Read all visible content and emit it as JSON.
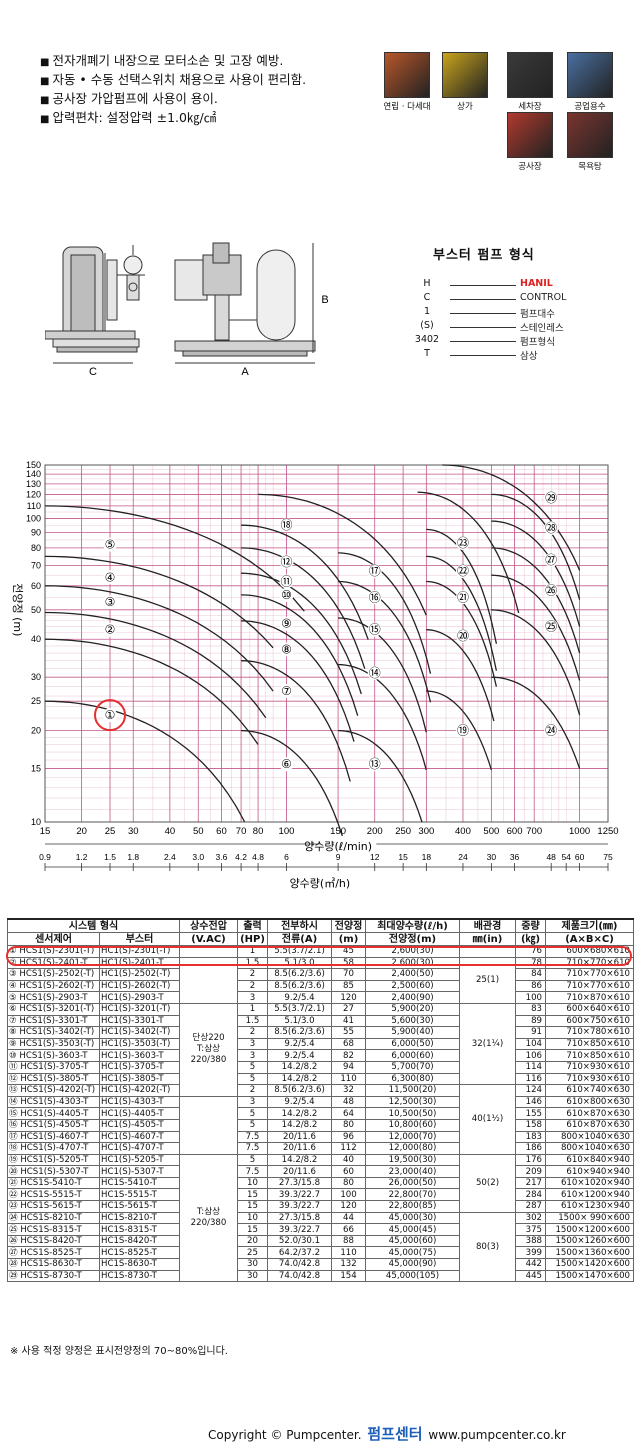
{
  "features": [
    "전자개폐기 내장으로 모터소손 및 고장 예방.",
    "자동 • 수동 선택스위치 채용으로 사용이 편리함.",
    "공사장 가압펌프에 사용이 용이.",
    "압력편차: 설정압력 ±1.0㎏/㎠"
  ],
  "applications": [
    {
      "label": "연립 · 다세대",
      "icon": "apartment-icon",
      "color": "#b8562a"
    },
    {
      "label": "상가",
      "icon": "shop-icon",
      "color": "#c9a41c"
    },
    {
      "label": "세차장",
      "icon": "carwash-icon",
      "color": "#3a3a3a"
    },
    {
      "label": "공업용수",
      "icon": "factory-icon",
      "color": "#4a6fa0"
    },
    {
      "label": "공사장",
      "icon": "construction-icon",
      "color": "#b03a2e"
    },
    {
      "label": "목욕탕",
      "icon": "bathhouse-icon",
      "color": "#7a3530"
    }
  ],
  "drawing": {
    "dim_a": "A",
    "dim_b": "B",
    "dim_c": "C"
  },
  "model_code": {
    "title": "부스터 펌프 형식",
    "rows": [
      {
        "code": "H",
        "meaning": "HANIL",
        "color": "#e02020"
      },
      {
        "code": "C",
        "meaning": "CONTROL",
        "color": "#222222"
      },
      {
        "code": "1",
        "meaning": "펌프대수",
        "color": "#222222"
      },
      {
        "code": "(S)",
        "meaning": "스테인레스",
        "color": "#222222"
      },
      {
        "code": "3402",
        "meaning": "펌프형식",
        "color": "#222222"
      },
      {
        "code": "T",
        "meaning": "삼상",
        "color": "#222222"
      }
    ]
  },
  "chart_data": {
    "type": "line",
    "title": "",
    "ylabel": "전양정 (m)",
    "xlabel": "양수량(ℓ/min)",
    "xlabel2": "양수량(㎥/h)",
    "y_ticks": [
      10,
      15,
      20,
      25,
      30,
      40,
      50,
      60,
      70,
      80,
      90,
      100,
      110,
      120,
      130,
      140,
      150
    ],
    "x_ticks": [
      15,
      20,
      25,
      30,
      40,
      50,
      60,
      70,
      80,
      100,
      150,
      200,
      250,
      300,
      400,
      500,
      600,
      700,
      1000,
      1250
    ],
    "x2_ticks": [
      "0.9",
      "1.2",
      "1.5",
      "1.8",
      "2.4",
      "3.0",
      "3.6",
      "4.2",
      "4.8",
      "6",
      "9",
      "12",
      "15",
      "18",
      "24",
      "30",
      "36",
      "48",
      "54",
      "60",
      "75"
    ],
    "highlight": "①",
    "curves": [
      {
        "id": "①",
        "label_at": [
          25,
          22.5
        ]
      },
      {
        "id": "②",
        "label_at": [
          25,
          43
        ]
      },
      {
        "id": "③",
        "label_at": [
          25,
          53
        ]
      },
      {
        "id": "④",
        "label_at": [
          25,
          64
        ]
      },
      {
        "id": "⑤",
        "label_at": [
          25,
          82
        ]
      },
      {
        "id": "⑥",
        "label_at": [
          100,
          15.5
        ]
      },
      {
        "id": "⑦",
        "label_at": [
          100,
          27
        ]
      },
      {
        "id": "⑧",
        "label_at": [
          100,
          37
        ]
      },
      {
        "id": "⑨",
        "label_at": [
          100,
          45
        ]
      },
      {
        "id": "⑩",
        "label_at": [
          100,
          56
        ]
      },
      {
        "id": "⑪",
        "label_at": [
          100,
          62
        ]
      },
      {
        "id": "⑫",
        "label_at": [
          100,
          72
        ]
      },
      {
        "id": "⑬",
        "label_at": [
          200,
          15.5
        ]
      },
      {
        "id": "⑭",
        "label_at": [
          200,
          31
        ]
      },
      {
        "id": "⑮",
        "label_at": [
          200,
          43
        ]
      },
      {
        "id": "⑯",
        "label_at": [
          200,
          55
        ]
      },
      {
        "id": "⑰",
        "label_at": [
          200,
          67
        ]
      },
      {
        "id": "⑱",
        "label_at": [
          100,
          95
        ]
      },
      {
        "id": "⑲",
        "label_at": [
          400,
          20
        ]
      },
      {
        "id": "⑳",
        "label_at": [
          400,
          41
        ]
      },
      {
        "id": "㉑",
        "label_at": [
          400,
          55
        ]
      },
      {
        "id": "㉒",
        "label_at": [
          400,
          67
        ]
      },
      {
        "id": "㉓",
        "label_at": [
          400,
          83
        ]
      },
      {
        "id": "㉔",
        "label_at": [
          800,
          20
        ]
      },
      {
        "id": "㉕",
        "label_at": [
          800,
          44
        ]
      },
      {
        "id": "㉖",
        "label_at": [
          800,
          58
        ]
      },
      {
        "id": "㉗",
        "label_at": [
          800,
          73
        ]
      },
      {
        "id": "㉘",
        "label_at": [
          800,
          93
        ]
      },
      {
        "id": "㉙",
        "label_at": [
          800,
          117
        ]
      }
    ]
  },
  "table": {
    "header1": [
      "시스템 형식",
      "",
      "상수전압",
      "출력",
      "전부하시",
      "전양정",
      "최대양수량(ℓ/h)",
      "배관경",
      "중량",
      "제품크기(㎜)"
    ],
    "header2": [
      "센서제어",
      "부스터",
      "(V.AC)",
      "(HP)",
      "전류(A)",
      "(m)",
      "전양정(m)",
      "㎜(in)",
      "(㎏)",
      "(A×B×C)"
    ],
    "rows": [
      [
        "① HCS1(S)-2301(-T)",
        "HC1(S)-2301(-T)",
        "1",
        "5.5(3.7/2.1)",
        "45",
        "2,600(30)",
        "76",
        "600×680×610"
      ],
      [
        "② HCS1(S)-2401-T",
        "HC1(S)-2401-T",
        "1.5",
        "5.1/3.0",
        "58",
        "2,600(30)",
        "78",
        "710×770×610"
      ],
      [
        "③ HCS1(S)-2502(-T)",
        "HC1(S)-2502(-T)",
        "2",
        "8.5(6.2/3.6)",
        "70",
        "2,400(50)",
        "84",
        "710×770×610"
      ],
      [
        "④ HCS1(S)-2602(-T)",
        "HC1(S)-2602(-T)",
        "2",
        "8.5(6.2/3.6)",
        "85",
        "2,500(60)",
        "86",
        "710×770×610"
      ],
      [
        "⑤ HCS1(S)-2903-T",
        "HC1(S)-2903-T",
        "3",
        "9.2/5.4",
        "120",
        "2,400(90)",
        "100",
        "710×870×610"
      ],
      [
        "⑥ HCS1(S)-3201(-T)",
        "HC1(S)-3201(-T)",
        "1",
        "5.5(3.7/2.1)",
        "27",
        "5,900(20)",
        "83",
        "600×640×610"
      ],
      [
        "⑦ HCS1(S)-3301-T",
        "HC1(S)-3301-T",
        "1.5",
        "5.1/3.0",
        "41",
        "5,600(30)",
        "89",
        "600×750×610"
      ],
      [
        "⑧ HCS1(S)-3402(-T)",
        "HC1(S)-3402(-T)",
        "2",
        "8.5(6.2/3.6)",
        "55",
        "5,900(40)",
        "91",
        "710×780×610"
      ],
      [
        "⑨ HCS1(S)-3503(-T)",
        "HC1(S)-3503(-T)",
        "3",
        "9.2/5.4",
        "68",
        "6,000(50)",
        "104",
        "710×850×610"
      ],
      [
        "⑩ HCS1(S)-3603-T",
        "HC1(S)-3603-T",
        "3",
        "9.2/5.4",
        "82",
        "6,000(60)",
        "106",
        "710×850×610"
      ],
      [
        "⑪ HCS1(S)-3705-T",
        "HC1(S)-3705-T",
        "5",
        "14.2/8.2",
        "94",
        "5,700(70)",
        "114",
        "710×930×610"
      ],
      [
        "⑫ HCS1(S)-3805-T",
        "HC1(S)-3805-T",
        "5",
        "14.2/8.2",
        "110",
        "6,300(80)",
        "116",
        "710×930×610"
      ],
      [
        "⑬ HCS1(S)-4202(-T)",
        "HC1(S)-4202(-T)",
        "2",
        "8.5(6.2/3.6)",
        "32",
        "11,500(20)",
        "124",
        "610×740×630"
      ],
      [
        "⑭ HCS1(S)-4303-T",
        "HC1(S)-4303-T",
        "3",
        "9.2/5.4",
        "48",
        "12,500(30)",
        "146",
        "610×800×630"
      ],
      [
        "⑮ HCS1(S)-4405-T",
        "HC1(S)-4405-T",
        "5",
        "14.2/8.2",
        "64",
        "10,500(50)",
        "155",
        "610×870×630"
      ],
      [
        "⑯ HCS1(S)-4505-T",
        "HC1(S)-4505-T",
        "5",
        "14.2/8.2",
        "80",
        "10,800(60)",
        "158",
        "610×870×630"
      ],
      [
        "⑰ HCS1(S)-4607-T",
        "HC1(S)-4607-T",
        "7.5",
        "20/11.6",
        "96",
        "12,000(70)",
        "183",
        "800×1040×630"
      ],
      [
        "⑱ HCS1(S)-4707-T",
        "HC1(S)-4707-T",
        "7.5",
        "20/11.6",
        "112",
        "12,000(80)",
        "186",
        "800×1040×630"
      ],
      [
        "⑲ HCS1(S)-5205-T",
        "HC1(S)-5205-T",
        "5",
        "14.2/8.2",
        "40",
        "19,500(30)",
        "176",
        "610×840×940"
      ],
      [
        "⑳ HCS1(S)-5307-T",
        "HC1(S)-5307-T",
        "7.5",
        "20/11.6",
        "60",
        "23,000(40)",
        "209",
        "610×940×940"
      ],
      [
        "㉑ HCS1S-5410-T",
        "HC1S-5410-T",
        "10",
        "27.3/15.8",
        "80",
        "26,000(50)",
        "217",
        "610×1020×940"
      ],
      [
        "㉒ HCS1S-5515-T",
        "HC1S-5515-T",
        "15",
        "39.3/22.7",
        "100",
        "22,800(70)",
        "284",
        "610×1200×940"
      ],
      [
        "㉓ HCS1S-5615-T",
        "HC1S-5615-T",
        "15",
        "39.3/22.7",
        "120",
        "22,800(85)",
        "287",
        "610×1230×940"
      ],
      [
        "㉔ HCS1S-8210-T",
        "HC1S-8210-T",
        "10",
        "27.3/15.8",
        "44",
        "45,000(30)",
        "302",
        "1500× 990×600"
      ],
      [
        "㉕ HCS1S-8315-T",
        "HC1S-8315-T",
        "15",
        "39.3/22.7",
        "66",
        "45,000(45)",
        "375",
        "1500×1200×600"
      ],
      [
        "㉖ HCS1S-8420-T",
        "HC1S-8420-T",
        "20",
        "52.0/30.1",
        "88",
        "45,000(60)",
        "388",
        "1500×1260×600"
      ],
      [
        "㉗ HCS1S-8525-T",
        "HC1S-8525-T",
        "25",
        "64.2/37.2",
        "110",
        "45,000(75)",
        "399",
        "1500×1360×600"
      ],
      [
        "㉘ HCS1S-8630-T",
        "HC1S-8630-T",
        "30",
        "74.0/42.8",
        "132",
        "45,000(90)",
        "442",
        "1500×1420×600"
      ],
      [
        "㉙ HCS1S-8730-T",
        "HC1S-8730-T",
        "30",
        "74.0/42.8",
        "154",
        "45,000(105)",
        "445",
        "1500×1470×600"
      ]
    ],
    "voltage_groups": [
      {
        "text": "단상220\nT:삼상\n220/380",
        "start": 5,
        "span": 8
      },
      {
        "text": "T:삼상\n220/380",
        "start": 18,
        "span": 11
      }
    ],
    "pipe_groups": [
      {
        "text": "25(1)",
        "start": 1,
        "span": 4
      },
      {
        "text": "32(1¼)",
        "start": 5,
        "span": 7
      },
      {
        "text": "40(1½)",
        "start": 12,
        "span": 6
      },
      {
        "text": "50(2)",
        "start": 18,
        "span": 5
      },
      {
        "text": "80(3)",
        "start": 23,
        "span": 6
      }
    ]
  },
  "note": "※ 사용 적정 양정은 표시전양정의 70~80%입니다.",
  "footer": {
    "copyright": "Copyright © Pumpcenter.",
    "logo": "펌프센터",
    "url": "www.pumpcenter.co.kr"
  },
  "colors": {
    "grid": "#c45a8a",
    "curve": "#222222",
    "highlight": "#e53030"
  }
}
